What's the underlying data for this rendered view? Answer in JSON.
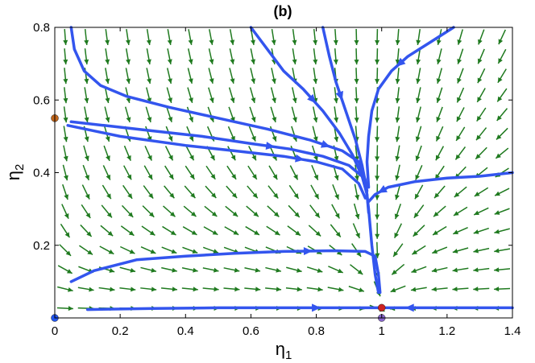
{
  "chart_data": {
    "type": "vector-field",
    "title": "(b)",
    "xlabel": "η",
    "xlabel_sub": "1",
    "ylabel": "η",
    "ylabel_sub": "2",
    "xlim": [
      0,
      1.4
    ],
    "ylim": [
      0,
      0.8
    ],
    "x_ticks": [
      0,
      0.2,
      0.4,
      0.6,
      0.8,
      1,
      1.2,
      1.4
    ],
    "x_tick_labels": [
      "0",
      "0.2",
      "0.4",
      "0.6",
      "0.8",
      "1",
      "1.2",
      "1.4"
    ],
    "y_ticks": [
      0.2,
      0.4,
      0.6,
      0.8
    ],
    "y_tick_labels": [
      "0.2",
      "0.4",
      "0.6",
      "0.8"
    ],
    "grid": false,
    "colors": {
      "field_arrows": "#1f7a1f",
      "trajectories": "#3355ee",
      "fixed_point_origin": "#2255ee",
      "fixed_point_axis": "#c0651a",
      "fixed_point_stable": "#cc2222",
      "fixed_point_saddle": "#8866cc"
    },
    "fixed_points": [
      {
        "x": 0,
        "y": 0,
        "color": "#2255ee"
      },
      {
        "x": 0,
        "y": 0.55,
        "color": "#c0651a"
      },
      {
        "x": 1,
        "y": 0.028,
        "color": "#cc2222"
      },
      {
        "x": 1,
        "y": 0,
        "color": "#8866cc"
      }
    ],
    "trajectories": [
      {
        "points": [
          [
            0.05,
            0.8
          ],
          [
            0.06,
            0.74
          ],
          [
            0.09,
            0.68
          ],
          [
            0.14,
            0.64
          ],
          [
            0.22,
            0.61
          ],
          [
            0.35,
            0.58
          ],
          [
            0.5,
            0.55
          ],
          [
            0.65,
            0.52
          ],
          [
            0.78,
            0.49
          ],
          [
            0.88,
            0.46
          ],
          [
            0.93,
            0.43
          ],
          [
            0.95,
            0.38
          ],
          [
            0.96,
            0.3
          ],
          [
            0.97,
            0.2
          ],
          [
            0.98,
            0.12
          ],
          [
            0.99,
            0.07
          ]
        ],
        "arrow_at": 0.55
      },
      {
        "points": [
          [
            0.05,
            0.54
          ],
          [
            0.15,
            0.53
          ],
          [
            0.3,
            0.515
          ],
          [
            0.45,
            0.5
          ],
          [
            0.6,
            0.48
          ],
          [
            0.72,
            0.465
          ],
          [
            0.82,
            0.445
          ],
          [
            0.9,
            0.42
          ],
          [
            0.94,
            0.39
          ],
          [
            0.955,
            0.34
          ],
          [
            0.96,
            0.29
          ]
        ],
        "arrow_at": 0.45
      },
      {
        "points": [
          [
            0.04,
            0.53
          ],
          [
            0.2,
            0.5
          ],
          [
            0.4,
            0.475
          ],
          [
            0.55,
            0.46
          ],
          [
            0.7,
            0.445
          ],
          [
            0.8,
            0.43
          ],
          [
            0.88,
            0.41
          ],
          [
            0.93,
            0.37
          ],
          [
            0.95,
            0.33
          ]
        ],
        "arrow_at": 0.5
      },
      {
        "points": [
          [
            0.6,
            0.8
          ],
          [
            0.65,
            0.74
          ],
          [
            0.7,
            0.68
          ],
          [
            0.76,
            0.63
          ],
          [
            0.82,
            0.57
          ],
          [
            0.87,
            0.51
          ],
          [
            0.91,
            0.45
          ],
          [
            0.94,
            0.39
          ]
        ],
        "arrow_at": 0.55
      },
      {
        "points": [
          [
            0.82,
            0.8
          ],
          [
            0.84,
            0.72
          ],
          [
            0.86,
            0.65
          ],
          [
            0.89,
            0.57
          ],
          [
            0.92,
            0.49
          ],
          [
            0.94,
            0.42
          ],
          [
            0.955,
            0.35
          ]
        ],
        "arrow_at": 0.45
      },
      {
        "points": [
          [
            1.22,
            0.8
          ],
          [
            1.15,
            0.76
          ],
          [
            1.08,
            0.72
          ],
          [
            1.03,
            0.68
          ],
          [
            0.99,
            0.63
          ],
          [
            0.97,
            0.57
          ],
          [
            0.96,
            0.5
          ],
          [
            0.955,
            0.43
          ],
          [
            0.96,
            0.36
          ]
        ],
        "arrow_at": 0.3
      },
      {
        "points": [
          [
            1.4,
            0.4
          ],
          [
            1.3,
            0.39
          ],
          [
            1.2,
            0.385
          ],
          [
            1.1,
            0.375
          ],
          [
            1.02,
            0.36
          ],
          [
            0.98,
            0.34
          ],
          [
            0.96,
            0.32
          ]
        ],
        "arrow_at": 0.8
      },
      {
        "points": [
          [
            0.05,
            0.1
          ],
          [
            0.12,
            0.13
          ],
          [
            0.25,
            0.16
          ],
          [
            0.4,
            0.17
          ],
          [
            0.55,
            0.178
          ],
          [
            0.7,
            0.183
          ],
          [
            0.85,
            0.185
          ],
          [
            0.95,
            0.183
          ],
          [
            0.98,
            0.17
          ],
          [
            0.99,
            0.12
          ],
          [
            0.995,
            0.07
          ]
        ],
        "arrow_at": 0.55
      },
      {
        "points": [
          [
            0.1,
            0.023
          ],
          [
            0.3,
            0.026
          ],
          [
            0.5,
            0.028
          ],
          [
            0.7,
            0.028
          ],
          [
            0.9,
            0.028
          ],
          [
            0.99,
            0.028
          ]
        ],
        "arrow_at": 0.6
      },
      {
        "points": [
          [
            1.4,
            0.028
          ],
          [
            1.25,
            0.028
          ],
          [
            1.12,
            0.028
          ],
          [
            1.05,
            0.028
          ],
          [
            1.01,
            0.028
          ]
        ],
        "arrow_at": 0.6
      }
    ]
  }
}
